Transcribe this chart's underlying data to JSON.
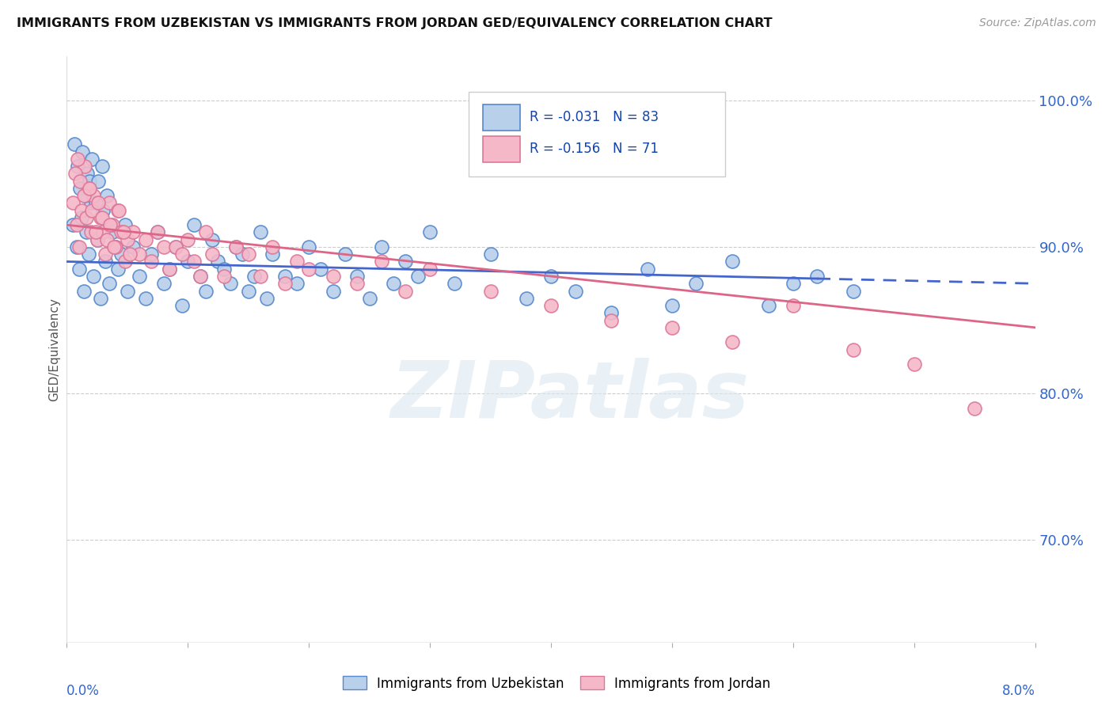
{
  "title": "IMMIGRANTS FROM UZBEKISTAN VS IMMIGRANTS FROM JORDAN GED/EQUIVALENCY CORRELATION CHART",
  "source": "Source: ZipAtlas.com",
  "ylabel": "GED/Equivalency",
  "xmin": 0.0,
  "xmax": 8.0,
  "ymin": 63.0,
  "ymax": 103.0,
  "yticks": [
    70.0,
    80.0,
    90.0,
    100.0
  ],
  "ytick_labels": [
    "70.0%",
    "80.0%",
    "90.0%",
    "100.0%"
  ],
  "r_uzbekistan": -0.031,
  "n_uzbekistan": 83,
  "r_jordan": -0.156,
  "n_jordan": 71,
  "color_uzbekistan": "#b8d0ea",
  "color_jordan": "#f5b8c8",
  "edge_color_uzbekistan": "#5588cc",
  "edge_color_jordan": "#dd7799",
  "line_color_uzbekistan": "#4466cc",
  "line_color_jordan": "#dd6688",
  "background_color": "#ffffff",
  "watermark": "ZIPatlas",
  "legend_label_uzbekistan": "Immigrants from Uzbekistan",
  "legend_label_jordan": "Immigrants from Jordan",
  "uzb_line_y0": 89.0,
  "uzb_line_y8": 87.5,
  "jor_line_y0": 91.5,
  "jor_line_y8": 84.5,
  "uzb_dash_start": 6.2,
  "uzbekistan_x": [
    0.05,
    0.08,
    0.1,
    0.12,
    0.14,
    0.16,
    0.18,
    0.2,
    0.22,
    0.25,
    0.28,
    0.3,
    0.32,
    0.35,
    0.38,
    0.4,
    0.42,
    0.45,
    0.48,
    0.5,
    0.55,
    0.6,
    0.65,
    0.7,
    0.75,
    0.8,
    0.85,
    0.9,
    0.95,
    1.0,
    1.05,
    1.1,
    1.15,
    1.2,
    1.25,
    1.3,
    1.35,
    1.4,
    1.45,
    1.5,
    1.55,
    1.6,
    1.65,
    1.7,
    1.8,
    1.9,
    2.0,
    2.1,
    2.2,
    2.3,
    2.4,
    2.5,
    2.6,
    2.7,
    2.8,
    2.9,
    3.0,
    3.2,
    3.5,
    3.8,
    4.0,
    4.2,
    4.5,
    4.8,
    5.0,
    5.2,
    5.5,
    5.8,
    6.0,
    6.2,
    6.5,
    0.06,
    0.09,
    0.11,
    0.13,
    0.15,
    0.17,
    0.19,
    0.21,
    0.24,
    0.26,
    0.29,
    0.33
  ],
  "uzbekistan_y": [
    91.5,
    90.0,
    88.5,
    92.0,
    87.0,
    91.0,
    89.5,
    93.0,
    88.0,
    90.5,
    86.5,
    92.5,
    89.0,
    87.5,
    91.0,
    90.0,
    88.5,
    89.5,
    91.5,
    87.0,
    90.0,
    88.0,
    86.5,
    89.5,
    91.0,
    87.5,
    88.5,
    90.0,
    86.0,
    89.0,
    91.5,
    88.0,
    87.0,
    90.5,
    89.0,
    88.5,
    87.5,
    90.0,
    89.5,
    87.0,
    88.0,
    91.0,
    86.5,
    89.5,
    88.0,
    87.5,
    90.0,
    88.5,
    87.0,
    89.5,
    88.0,
    86.5,
    90.0,
    87.5,
    89.0,
    88.0,
    91.0,
    87.5,
    89.5,
    86.5,
    88.0,
    87.0,
    85.5,
    88.5,
    86.0,
    87.5,
    89.0,
    86.0,
    87.5,
    88.0,
    87.0,
    97.0,
    95.5,
    94.0,
    96.5,
    93.5,
    95.0,
    94.5,
    96.0,
    93.0,
    94.5,
    95.5,
    93.5
  ],
  "jordan_x": [
    0.05,
    0.08,
    0.1,
    0.12,
    0.15,
    0.18,
    0.2,
    0.22,
    0.25,
    0.28,
    0.3,
    0.32,
    0.35,
    0.38,
    0.4,
    0.42,
    0.45,
    0.48,
    0.5,
    0.55,
    0.6,
    0.65,
    0.7,
    0.75,
    0.8,
    0.85,
    0.9,
    0.95,
    1.0,
    1.05,
    1.1,
    1.15,
    1.2,
    1.3,
    1.4,
    1.5,
    1.6,
    1.7,
    1.8,
    1.9,
    2.0,
    2.2,
    2.4,
    2.6,
    2.8,
    3.0,
    3.5,
    4.0,
    4.5,
    5.0,
    5.5,
    6.0,
    6.5,
    7.0,
    7.5,
    0.07,
    0.09,
    0.11,
    0.14,
    0.16,
    0.19,
    0.21,
    0.24,
    0.26,
    0.29,
    0.33,
    0.36,
    0.39,
    0.43,
    0.47,
    0.52
  ],
  "jordan_y": [
    93.0,
    91.5,
    90.0,
    92.5,
    95.5,
    94.0,
    91.0,
    93.5,
    90.5,
    92.0,
    91.0,
    89.5,
    93.0,
    91.5,
    90.0,
    92.5,
    91.0,
    89.0,
    90.5,
    91.0,
    89.5,
    90.5,
    89.0,
    91.0,
    90.0,
    88.5,
    90.0,
    89.5,
    90.5,
    89.0,
    88.0,
    91.0,
    89.5,
    88.0,
    90.0,
    89.5,
    88.0,
    90.0,
    87.5,
    89.0,
    88.5,
    88.0,
    87.5,
    89.0,
    87.0,
    88.5,
    87.0,
    86.0,
    85.0,
    84.5,
    83.5,
    86.0,
    83.0,
    82.0,
    79.0,
    95.0,
    96.0,
    94.5,
    93.5,
    92.0,
    94.0,
    92.5,
    91.0,
    93.0,
    92.0,
    90.5,
    91.5,
    90.0,
    92.5,
    91.0,
    89.5
  ]
}
